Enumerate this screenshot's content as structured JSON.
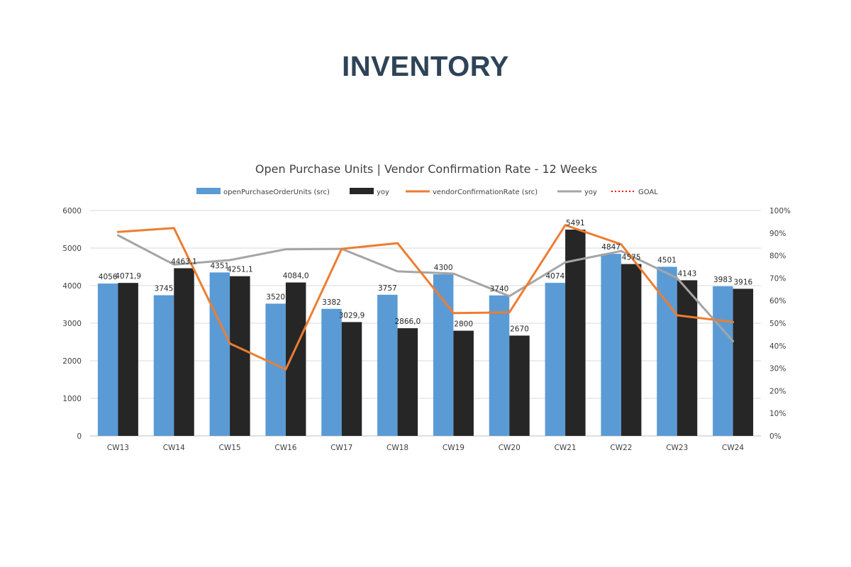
{
  "page": {
    "title": "INVENTORY"
  },
  "chart_data": {
    "type": "bar",
    "title": "Open Purchase Units | Vendor Confirmation Rate - 12 Weeks",
    "categories": [
      "CW13",
      "CW14",
      "CW15",
      "CW16",
      "CW17",
      "CW18",
      "CW19",
      "CW20",
      "CW21",
      "CW22",
      "CW23",
      "CW24"
    ],
    "y_left": {
      "ylim": [
        0,
        6000
      ],
      "ticks": [
        "0",
        "1000",
        "2000",
        "3000",
        "4000",
        "5000",
        "6000"
      ]
    },
    "y_right": {
      "ylim": [
        0,
        1
      ],
      "ticks": [
        "0%",
        "10%",
        "20%",
        "30%",
        "40%",
        "50%",
        "60%",
        "70%",
        "80%",
        "90%",
        "100%"
      ]
    },
    "grid": true,
    "legend_position": "top",
    "bar_series": [
      {
        "name": "openPurchaseOrderUnits (src)",
        "color": "#5b9bd5",
        "values": [
          4056,
          3745,
          4351,
          3520,
          3382,
          3757,
          4300,
          3740,
          4074,
          4847,
          4501,
          3983
        ],
        "labels": [
          "4056",
          "3745",
          "4351",
          "3520",
          "3382",
          "3757",
          "4300",
          "3740",
          "4074",
          "4847",
          "4501",
          "3983"
        ]
      },
      {
        "name": "yoy",
        "color": "#262626",
        "values": [
          4071.9,
          4463.1,
          4251.1,
          4084.0,
          3029.9,
          2866.0,
          2800,
          2670,
          5491,
          4575,
          4143,
          3916
        ],
        "labels": [
          "4071,9",
          "4463,1",
          "4251,1",
          "4084,0",
          "3029,9",
          "2866,0",
          "2800",
          "2670",
          "5491",
          "4575",
          "4143",
          "3916"
        ]
      }
    ],
    "line_series": [
      {
        "name": "vendorConfirmationRate (src)",
        "color": "#ed7d31",
        "style": "solid",
        "values": [
          0.905,
          0.922,
          0.41,
          0.295,
          0.83,
          0.855,
          0.545,
          0.548,
          0.935,
          0.85,
          0.535,
          0.505
        ]
      },
      {
        "name": "yoy",
        "color": "#a5a5a5",
        "style": "solid",
        "values": [
          0.89,
          0.76,
          0.78,
          0.828,
          0.83,
          0.73,
          0.72,
          0.62,
          0.77,
          0.82,
          0.7,
          0.42
        ]
      },
      {
        "name": "GOAL",
        "color": "#ff0000",
        "style": "dotted",
        "values": []
      }
    ]
  }
}
